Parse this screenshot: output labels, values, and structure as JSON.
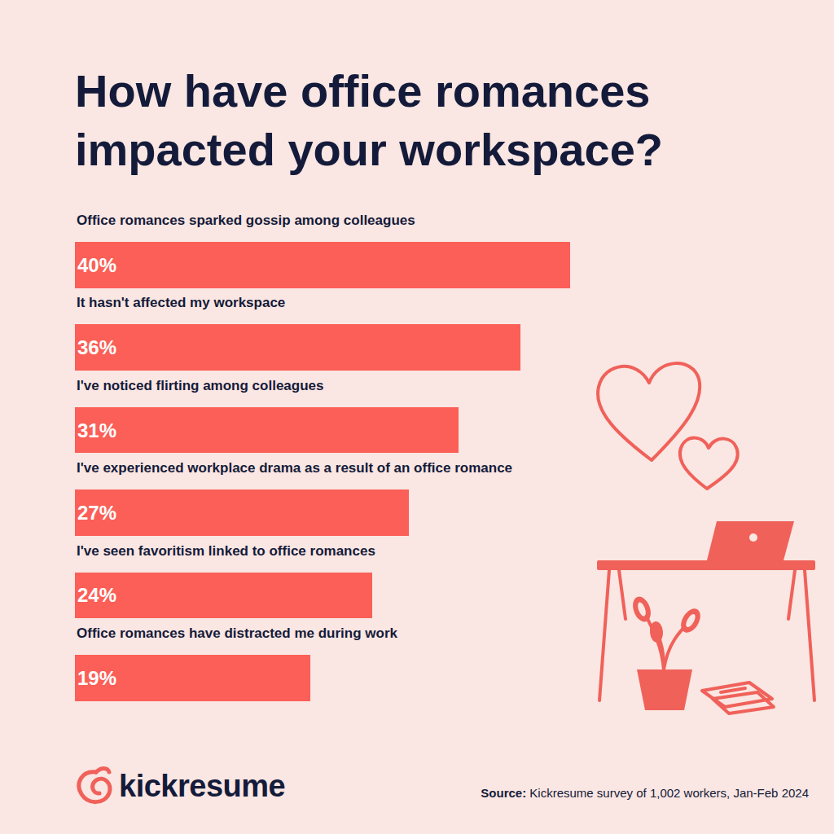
{
  "chart_data": {
    "type": "bar",
    "orientation": "horizontal",
    "title": "How have office romances impacted your workspace?",
    "categories": [
      "Office romances sparked gossip among colleagues",
      "It hasn't affected my workspace",
      "I've noticed flirting among colleagues",
      "I've experienced workplace drama as a result of an office romance",
      "I've seen favoritism linked to office romances",
      "Office romances have distracted me during work"
    ],
    "values": [
      40,
      36,
      31,
      27,
      24,
      19
    ],
    "value_labels": [
      "40%",
      "36%",
      "31%",
      "27%",
      "24%",
      "19%"
    ],
    "data_labels": true,
    "tick_labels": false,
    "grid": false,
    "color": "#fb5f57",
    "xlim": [
      0,
      40
    ],
    "xticks": [],
    "logo": "kickresume",
    "source": "Source: Kickresume survey of 1,002 workers, Jan-Feb 2024"
  }
}
